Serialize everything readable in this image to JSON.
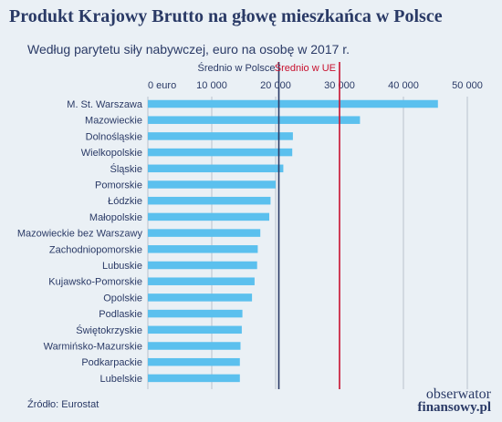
{
  "header": {
    "title": "Produkt Krajowy Brutto na głowę mieszkańca w Polsce",
    "subtitle": "Według parytetu siły nabywczej, euro na osobę w 2017 r."
  },
  "footer": {
    "source": "Źródło: Eurostat",
    "logo_line1": "obserwator",
    "logo_line2": "finansowy.pl"
  },
  "colors": {
    "bar": "#5bc0ee",
    "grid": "#b9c2cd",
    "poland_line": "#2a3a66",
    "eu_line": "#c8102e",
    "text": "#2a3a66"
  },
  "chart_data": {
    "type": "bar",
    "orientation": "horizontal",
    "title": "Produkt Krajowy Brutto na głowę mieszkańca w Polsce",
    "subtitle": "Według parytetu siły nabywczej, euro na osobę w 2017 r.",
    "xlim": [
      0,
      50000
    ],
    "xticks": [
      0,
      10000,
      20000,
      30000,
      40000,
      50000
    ],
    "xtick_labels": [
      "0 euro",
      "10 000",
      "20 000",
      "30 000",
      "40 000",
      "50 000"
    ],
    "grid": true,
    "categories": [
      "M. St. Warszawa",
      "Mazowieckie",
      "Dolnośląskie",
      "Wielkopolskie",
      "Śląskie",
      "Pomorskie",
      "Łódzkie",
      "Małopolskie",
      "Mazowieckie bez Warszawy",
      "Zachodniopomorskie",
      "Lubuskie",
      "Kujawsko-Pomorskie",
      "Opolskie",
      "Podlaskie",
      "Świętokrzyskie",
      "Warmińsko-Mazurskie",
      "Podkarpackie",
      "Lubelskie"
    ],
    "values": [
      45400,
      33200,
      22700,
      22600,
      21200,
      20000,
      19200,
      19000,
      17600,
      17200,
      17100,
      16700,
      16300,
      14800,
      14700,
      14500,
      14400,
      14400
    ],
    "reference_lines": [
      {
        "label": "Średnio w Polsce",
        "value": 20500
      },
      {
        "label": "Średnio w UE",
        "value": 30000
      }
    ]
  }
}
